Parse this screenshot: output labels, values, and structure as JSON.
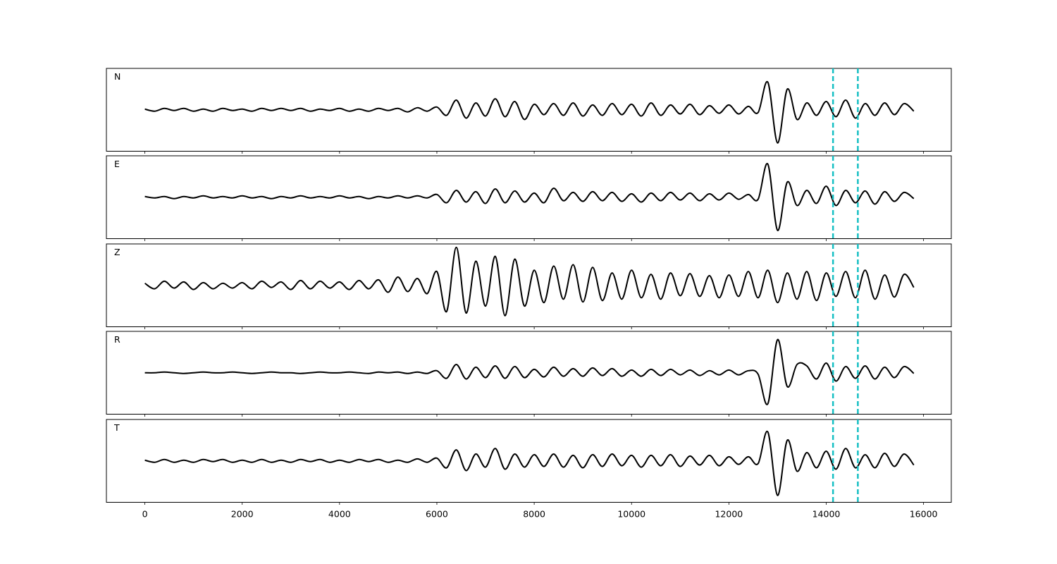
{
  "chart_data": {
    "type": "line",
    "x": [
      0,
      200,
      400,
      600,
      800,
      1000,
      1200,
      1400,
      1600,
      1800,
      2000,
      2200,
      2400,
      2600,
      2800,
      3000,
      3200,
      3400,
      3600,
      3800,
      4000,
      4200,
      4400,
      4600,
      4800,
      5000,
      5200,
      5400,
      5600,
      5800,
      6000,
      6200,
      6400,
      6600,
      6800,
      7000,
      7200,
      7400,
      7600,
      7800,
      8000,
      8200,
      8400,
      8600,
      8800,
      9000,
      9200,
      9400,
      9600,
      9800,
      10000,
      10200,
      10400,
      10600,
      10800,
      11000,
      11200,
      11400,
      11600,
      11800,
      12000,
      12200,
      12400,
      12600,
      12800,
      13000,
      13200,
      13400,
      13600,
      13800,
      14000,
      14200,
      14400,
      14600,
      14800,
      15000,
      15200,
      15400,
      15600,
      15800
    ],
    "xlim": [
      -790,
      16570
    ],
    "xticks": [
      0,
      2000,
      4000,
      6000,
      8000,
      10000,
      12000,
      14000,
      16000
    ],
    "ylim": [
      -60,
      60
    ],
    "line_color": "#000000",
    "vlines": [
      14140,
      14650
    ],
    "vline_color": "#17c0c4",
    "series": [
      {
        "name": "N",
        "values": [
          1,
          -2,
          2,
          -1,
          2,
          -2,
          1,
          -2,
          2,
          -1,
          1,
          -2,
          2,
          -1,
          2,
          -1,
          2,
          -2,
          1,
          -1,
          2,
          -2,
          1,
          -2,
          2,
          -1,
          2,
          -3,
          3,
          -2,
          4,
          -8,
          14,
          -12,
          10,
          -9,
          16,
          -10,
          12,
          -14,
          8,
          -7,
          9,
          -8,
          10,
          -9,
          7,
          -8,
          9,
          -7,
          8,
          -9,
          10,
          -8,
          7,
          -6,
          8,
          -7,
          6,
          -5,
          7,
          -6,
          5,
          -4,
          40,
          -48,
          30,
          -14,
          10,
          -8,
          12,
          -10,
          14,
          -12,
          9,
          -8,
          10,
          -7,
          9,
          -2
        ]
      },
      {
        "name": "E",
        "values": [
          1,
          -1,
          1,
          -2,
          1,
          -1,
          2,
          -1,
          1,
          -1,
          2,
          -1,
          1,
          -2,
          1,
          -1,
          2,
          -1,
          1,
          -1,
          2,
          -1,
          1,
          -2,
          1,
          -1,
          2,
          -1,
          2,
          -1,
          4,
          -8,
          10,
          -7,
          8,
          -9,
          12,
          -8,
          9,
          -7,
          6,
          -8,
          13,
          -5,
          7,
          -6,
          8,
          -5,
          7,
          -6,
          5,
          -7,
          6,
          -5,
          7,
          -4,
          6,
          -5,
          5,
          -4,
          6,
          -3,
          4,
          -3,
          48,
          -48,
          22,
          -12,
          10,
          -9,
          16,
          -12,
          10,
          -8,
          9,
          -10,
          8,
          -6,
          7,
          -2
        ]
      },
      {
        "name": "Z",
        "values": [
          3,
          -5,
          6,
          -4,
          5,
          -6,
          4,
          -5,
          3,
          -4,
          4,
          -5,
          6,
          -3,
          5,
          -6,
          7,
          -5,
          6,
          -4,
          5,
          -6,
          7,
          -5,
          8,
          -10,
          12,
          -9,
          10,
          -12,
          20,
          -38,
          55,
          -40,
          35,
          -30,
          42,
          -44,
          38,
          -30,
          22,
          -25,
          28,
          -20,
          30,
          -24,
          26,
          -22,
          18,
          -20,
          22,
          -18,
          16,
          -20,
          18,
          -15,
          17,
          -16,
          14,
          -18,
          15,
          -16,
          20,
          -18,
          22,
          -25,
          18,
          -20,
          20,
          -22,
          18,
          -16,
          20,
          -18,
          22,
          -20,
          15,
          -17,
          16,
          -3
        ]
      },
      {
        "name": "R",
        "values": [
          0,
          0,
          1,
          0,
          -1,
          0,
          1,
          0,
          0,
          1,
          0,
          -1,
          0,
          1,
          0,
          0,
          -1,
          0,
          1,
          0,
          0,
          1,
          0,
          -1,
          1,
          0,
          1,
          -1,
          1,
          -1,
          3,
          -8,
          12,
          -9,
          8,
          -7,
          10,
          -8,
          9,
          -7,
          5,
          -6,
          8,
          -5,
          6,
          -5,
          7,
          -4,
          6,
          -5,
          4,
          -5,
          5,
          -4,
          5,
          -3,
          4,
          -4,
          3,
          -3,
          4,
          -3,
          3,
          -2,
          -45,
          48,
          -20,
          12,
          10,
          -9,
          14,
          -12,
          9,
          -8,
          10,
          -9,
          8,
          -7,
          9,
          -1
        ]
      },
      {
        "name": "T",
        "values": [
          1,
          -2,
          2,
          -2,
          1,
          -2,
          2,
          -1,
          2,
          -2,
          1,
          -2,
          2,
          -2,
          1,
          -2,
          2,
          -1,
          2,
          -2,
          1,
          -2,
          2,
          -1,
          2,
          -2,
          1,
          -2,
          3,
          -2,
          4,
          -10,
          16,
          -14,
          10,
          -9,
          18,
          -12,
          10,
          -9,
          9,
          -8,
          10,
          -9,
          8,
          -10,
          9,
          -8,
          10,
          -7,
          8,
          -9,
          8,
          -7,
          9,
          -8,
          7,
          -6,
          8,
          -7,
          6,
          -5,
          6,
          -4,
          42,
          -50,
          30,
          -15,
          12,
          -10,
          14,
          -12,
          18,
          -10,
          9,
          -10,
          11,
          -8,
          10,
          -6
        ]
      }
    ]
  }
}
